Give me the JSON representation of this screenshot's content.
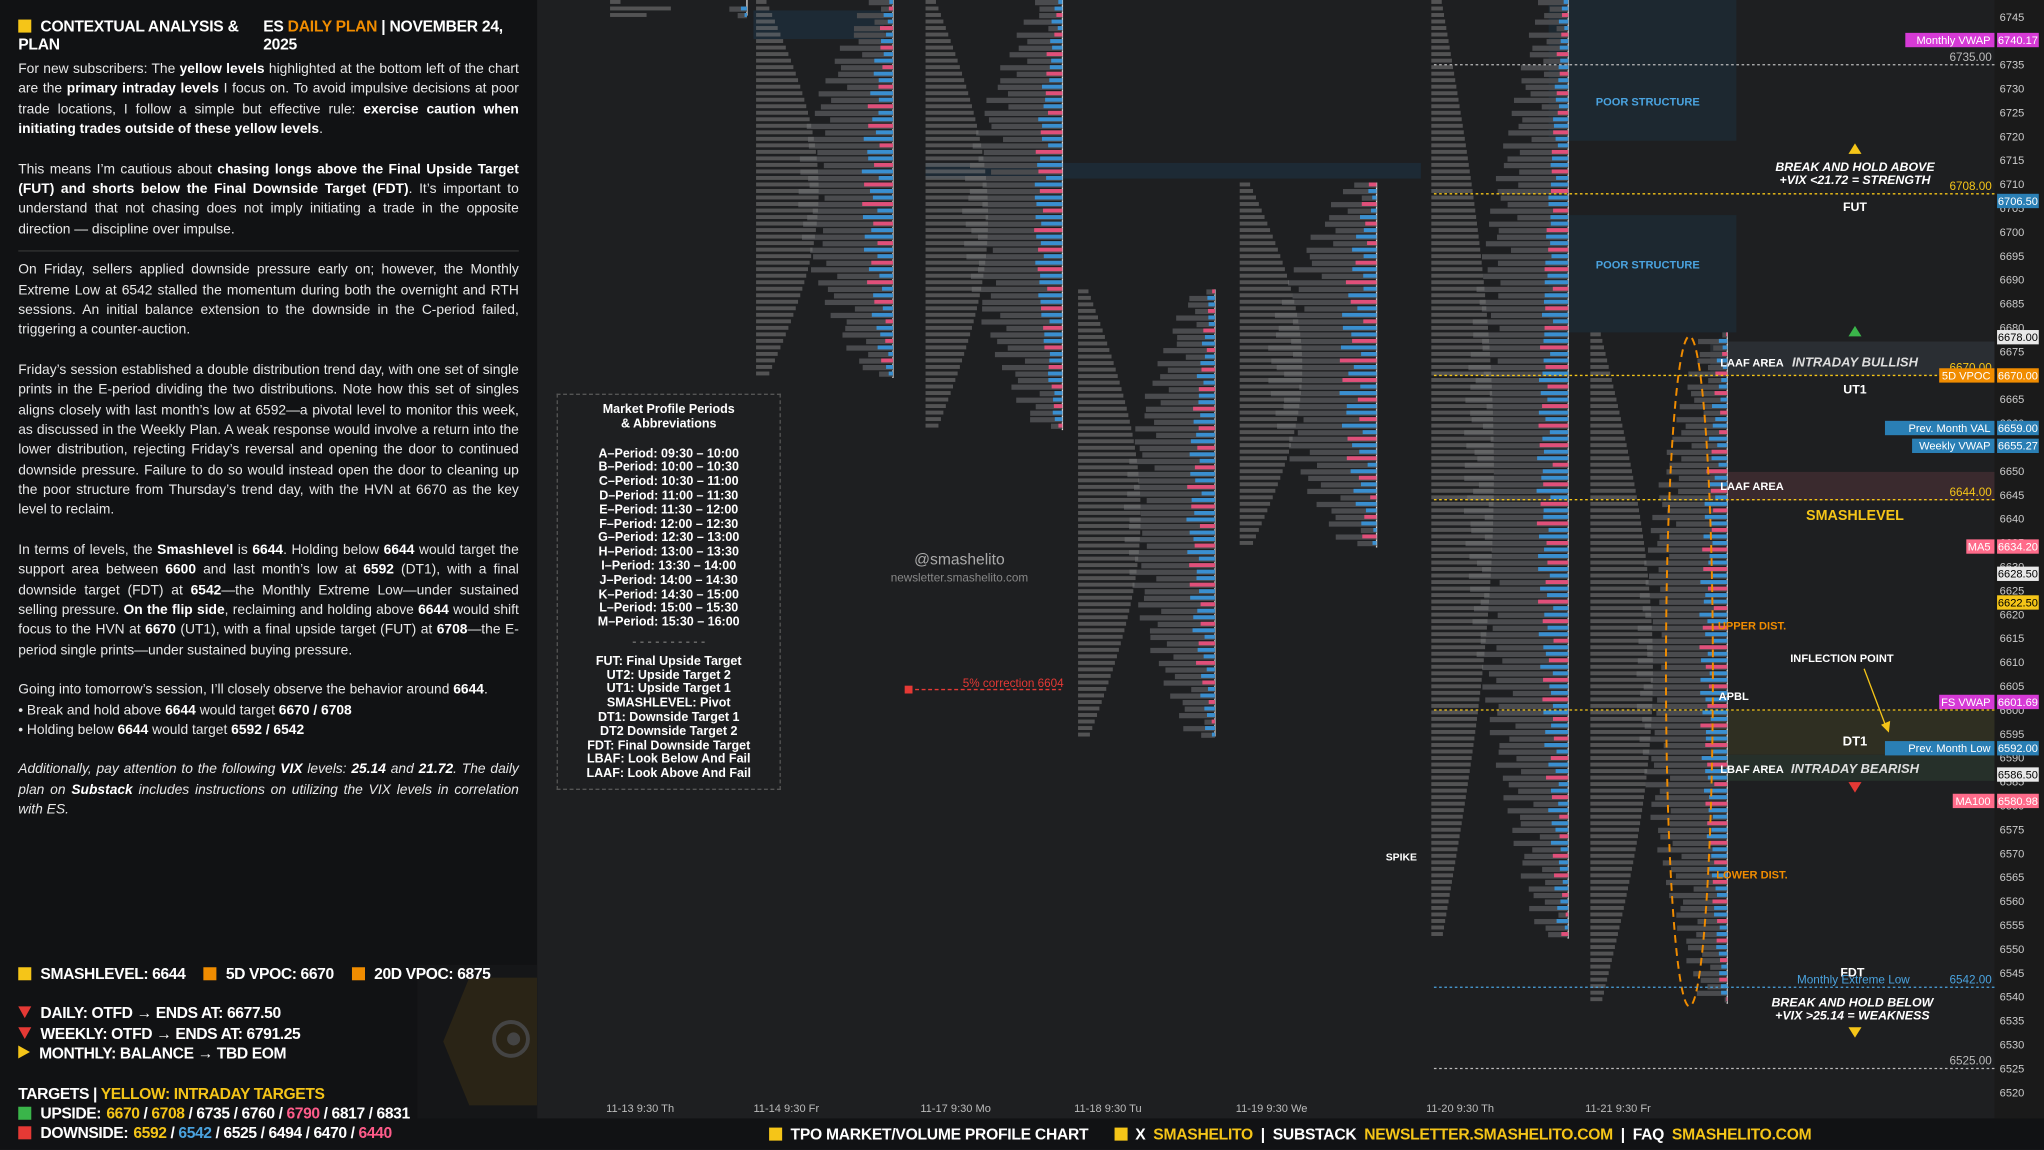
{
  "header": {
    "title": "CONTEXTUAL ANALYSIS & PLAN",
    "symbol": "ES",
    "plan": "DAILY PLAN",
    "date": "NOVEMBER 24, 2025"
  },
  "paragraphs": [
    [
      "For new subscribers: The ",
      {
        "bold": "yellow levels"
      },
      " highlighted at the bottom left of the chart are the ",
      {
        "bold": "primary intraday levels"
      },
      " I focus on. To avoid impulsive decisions at poor trade locations, I follow a simple but effective rule: ",
      {
        "bold": "exercise caution when initiating trades outside of these yellow levels"
      },
      "."
    ],
    [
      "This means I’m cautious about ",
      {
        "bold": "chasing longs above the Final Upside Target (FUT) and shorts below the Final Downside Target (FDT)"
      },
      ". It’s important to understand that not chasing does not imply initiating a trade in the opposite direction — discipline over impulse."
    ],
    [
      "On Friday, sellers applied downside pressure early on; however, the Monthly Extreme Low at 6542 stalled the momentum during both the overnight and RTH sessions. An initial balance extension to the downside in the C-period failed, triggering a counter-auction."
    ],
    [
      "Friday’s session established a double distribution trend day, with one set of single prints in the E-period dividing the two distributions. Note how this set of singles aligns closely with last month’s low at 6592—a pivotal level to monitor this week, as discussed in the Weekly Plan. A weak response would involve a return into the lower distribution, rejecting Friday’s reversal and opening the door to continued downside pressure. Failure to do so would instead open the door to cleaning up the poor structure from Thursday’s trend day, with the HVN at 6670 as the key level to reclaim."
    ],
    [
      "In terms of levels, the ",
      {
        "bold": "Smashlevel"
      },
      " is ",
      {
        "bold": "6644"
      },
      ". Holding below ",
      {
        "bold": "6644"
      },
      " would target the support area between ",
      {
        "bold": "6600"
      },
      " and last month’s low at ",
      {
        "bold": "6592"
      },
      " (DT1), with a final downside target (FDT) at ",
      {
        "bold": "6542"
      },
      "—the Monthly Extreme Low—under sustained selling pressure. ",
      {
        "bold": "On the flip side"
      },
      ", reclaiming and holding above ",
      {
        "bold": "6644"
      },
      " would shift focus to the HVN at ",
      {
        "bold": "6670"
      },
      " (UT1), with a final upside target (FUT) at ",
      {
        "bold": "6708"
      },
      "—the E-period single prints—under sustained buying pressure."
    ],
    [
      "Going into tomorrow’s session, I’ll closely observe the behavior around ",
      {
        "bold": "6644"
      },
      "."
    ],
    [
      "Additionally, pay attention to the following ",
      {
        "bold": "VIX"
      },
      " levels: ",
      {
        "bold": "25.14"
      },
      " and ",
      {
        "bold": "21.72"
      },
      ". The daily plan on ",
      {
        "bold": "Substack"
      },
      " includes instructions on utilizing the VIX levels in correlation with ES."
    ]
  ],
  "bullets": [
    [
      "• Break and hold above ",
      {
        "bold": "6644"
      },
      " would target ",
      {
        "bold": "6670 / 6708"
      }
    ],
    [
      "• Holding below ",
      {
        "bold": "6644"
      },
      " would target ",
      {
        "bold": "6592 / 6542"
      }
    ]
  ],
  "legend": [
    {
      "text": "SMASHLEVEL: 6644",
      "color": "#f5c518"
    },
    {
      "text": "5D VPOC: 6670",
      "color": "#f08c00"
    },
    {
      "text": "20D VPOC: 6875",
      "color": "#f08c00"
    }
  ],
  "status": [
    {
      "text": "DAILY: OTFD → ENDS AT: 6677.50",
      "dir": "down"
    },
    {
      "text": "WEEKLY: OTFD → ENDS AT: 6791.25",
      "dir": "down"
    },
    {
      "text": "MONTHLY: BALANCE → TBD EOM",
      "dir": "right"
    }
  ],
  "targets": {
    "title": "TARGETS",
    "subtitle": "YELLOW: INTRADAY TARGETS",
    "upside": {
      "label": "UPSIDE:",
      "color": "#3ab54a",
      "levels": [
        {
          "text": "6670",
          "color": "#f5c518"
        },
        {
          "text": "6708",
          "color": "#f5c518"
        },
        {
          "text": "6735",
          "color": "#ffffff"
        },
        {
          "text": "6760",
          "color": "#ffffff"
        },
        {
          "text": "6790",
          "color": "#ff5c8a"
        },
        {
          "text": "6817",
          "color": "#ffffff"
        },
        {
          "text": "6831",
          "color": "#ffffff"
        }
      ]
    },
    "downside": {
      "label": "DOWNSIDE:",
      "color": "#e53935",
      "levels": [
        {
          "text": "6592",
          "color": "#f5c518"
        },
        {
          "text": "6542",
          "color": "#4aa3df"
        },
        {
          "text": "6525",
          "color": "#ffffff"
        },
        {
          "text": "6494",
          "color": "#ffffff"
        },
        {
          "text": "6470",
          "color": "#ffffff"
        },
        {
          "text": "6440",
          "color": "#ff5c8a"
        }
      ]
    }
  },
  "price_axis": [
    6745,
    6740,
    6735,
    6730,
    6725,
    6720,
    6715,
    6710,
    6705,
    6700,
    6695,
    6690,
    6685,
    6680,
    6675,
    6670,
    6665,
    6660,
    6655,
    6650,
    6645,
    6640,
    6635,
    6630,
    6625,
    6620,
    6615,
    6610,
    6605,
    6600,
    6595,
    6590,
    6585,
    6580,
    6575,
    6570,
    6565,
    6560,
    6555,
    6550,
    6545,
    6540,
    6535,
    6530,
    6525,
    6520
  ],
  "price_tags": [
    {
      "name": "Monthly VWAP",
      "price": "6740.17",
      "color": "#d63ad6"
    },
    {
      "price": "6706.50",
      "color": "#2a7fb5"
    },
    {
      "price": "6678.00",
      "color": "#e8e8e8"
    },
    {
      "name": "5D VPOC",
      "price": "6670.00",
      "color": "#f08c00"
    },
    {
      "name": "Prev. Month VAL",
      "price": "6659.00",
      "color": "#2a7fb5"
    },
    {
      "name": "Weekly VWAP",
      "price": "6655.27",
      "color": "#2a7fb5"
    },
    {
      "name": "MA5",
      "price": "6634.20",
      "color": "#ff6b8a"
    },
    {
      "price": "6628.50",
      "color": "#e8e8e8"
    },
    {
      "price": "6622.50",
      "color": "#f5c518"
    },
    {
      "name": "FS VWAP",
      "price": "6601.69",
      "color": "#d63ad6"
    },
    {
      "name": "Prev. Month Low",
      "price": "6592.00",
      "color": "#2a7fb5"
    },
    {
      "price": "6586.50",
      "color": "#e8e8e8"
    },
    {
      "name": "MA100",
      "price": "6580.98",
      "color": "#ff6b8a"
    }
  ],
  "levels": [
    {
      "price": "6735.00",
      "color": "#bbbbbb"
    },
    {
      "price": "6708.00",
      "color": "#f5c518"
    },
    {
      "price": "6670.00",
      "color": "#f5c518"
    },
    {
      "price": "6644.00",
      "color": "#f5c518"
    },
    {
      "price": "6600.00",
      "color": "#f5c518"
    },
    {
      "price": "6542.00",
      "color": "#4aa3df",
      "name": "Monthly Extreme Low"
    },
    {
      "price": "6525.00",
      "color": "#bbbbbb"
    }
  ],
  "dates": [
    "11-13  9:30 Th",
    "11-14  9:30 Fr",
    "11-17  9:30 Mo",
    "11-18  9:30 Tu",
    "11-19  9:30 We",
    "11-20  9:30 Th",
    "11-21  9:30 Fr"
  ],
  "annotations": {
    "poor_structure_1": "POOR STRUCTURE",
    "poor_structure_2": "POOR STRUCTURE",
    "break_above": "BREAK AND HOLD ABOVE",
    "vix_strength": "+VIX <21.72 = STRENGTH",
    "fut": "FUT",
    "laaf_1": "LAAF AREA",
    "intraday_bullish": "INTRADAY BULLISH",
    "ut1": "UT1",
    "laaf_2": "LAAF AREA",
    "smashlevel": "SMASHLEVEL",
    "upper_dist": "UPPER DIST.",
    "inflection": "INFLECTION POINT",
    "apbl": "APBL",
    "dt1": "DT1",
    "lbaf": "LBAF AREA",
    "intraday_bearish": "INTRADAY BEARISH",
    "lower_dist": "LOWER DIST.",
    "fdt": "FDT",
    "break_below": "BREAK AND HOLD BELOW",
    "vix_weakness": "+VIX >25.14 = WEAKNESS",
    "spike": "SPIKE",
    "correction": "5% correction 6604",
    "handle": "@smashelito",
    "site": "newsletter.smashelito.com"
  },
  "market_profile": {
    "title": "Market Profile Periods",
    "subtitle": "& Abbreviations",
    "periods": [
      "A–Period: 09:30 – 10:00",
      "B–Period: 10:00 – 10:30",
      "C–Period: 10:30 – 11:00",
      "D–Period: 11:00 – 11:30",
      "E–Period: 11:30 – 12:00",
      "F–Period: 12:00 – 12:30",
      "G–Period: 12:30 – 13:00",
      "H–Period: 13:00 – 13:30",
      "I–Period: 13:30 – 14:00",
      "J–Period: 14:00 – 14:30",
      "K–Period: 14:30 – 15:00",
      "L–Period: 15:00 – 15:30",
      "M–Period: 15:30 – 16:00"
    ],
    "abbreviations": [
      "FUT: Final Upside Target",
      "UT2: Upside Target 2",
      "UT1: Upside Target 1",
      "SMASHLEVEL: Pivot",
      "DT1: Downside Target 1",
      "DT2 Downside Target 2",
      "FDT: Final Downside Target",
      "LBAF: Look Below And Fail",
      "LAAF: Look Above And Fail"
    ]
  },
  "footer": {
    "chart": "TPO MARKET/VOLUME PROFILE CHART",
    "x": "X",
    "x_handle": "SMASHELITO",
    "substack": "SUBSTACK",
    "substack_url": "NEWSLETTER.SMASHELITO.COM",
    "faq": "FAQ",
    "faq_url": "SMASHELITO.COM"
  }
}
